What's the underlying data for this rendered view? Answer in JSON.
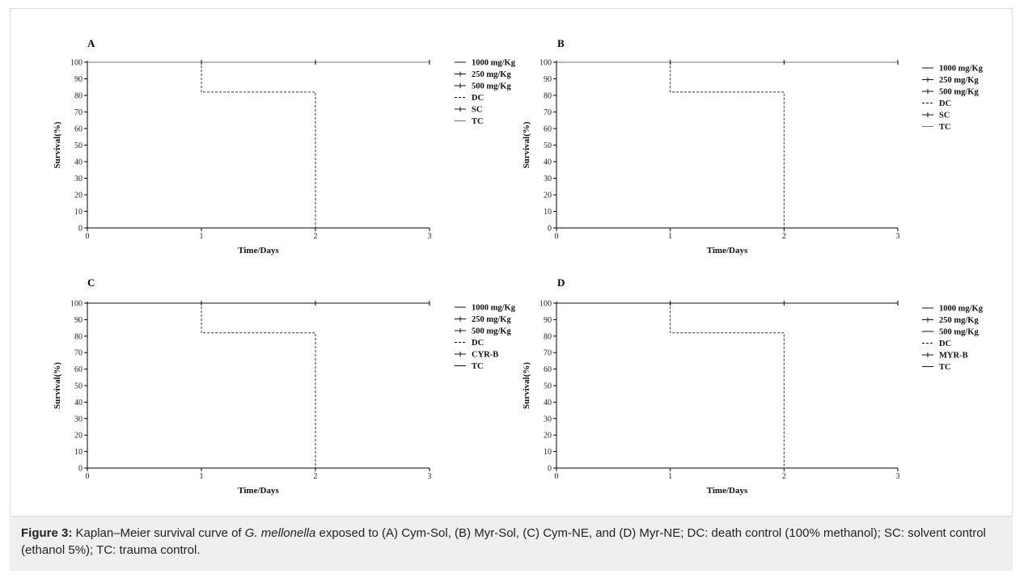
{
  "caption": {
    "lead": "Figure 3:",
    "text_before_species": " Kaplan–Meier survival curve of ",
    "species": "G. mellonella",
    "text_after_species": " exposed to (A) Cym-Sol, (B) Myr-Sol, (C) Cym-NE, and (D) Myr-NE; DC: death control (100% methanol); SC: solvent control (ethanol 5%); TC: trauma control."
  },
  "chart_data": [
    {
      "type": "line",
      "panel": "A",
      "xlabel": "Time/Days",
      "ylabel": "Survival(%)",
      "xlim": [
        0,
        3
      ],
      "ylim": [
        0,
        100
      ],
      "x_ticks": [
        0,
        1,
        2,
        3
      ],
      "y_ticks": [
        0,
        10,
        20,
        30,
        40,
        50,
        60,
        70,
        80,
        90,
        100
      ],
      "legend_position": "right",
      "series": [
        {
          "name": "1000 mg/Kg",
          "style": "solid",
          "x": [
            0,
            3
          ],
          "y": [
            100,
            100
          ]
        },
        {
          "name": "250 mg/Kg",
          "style": "solid-tick",
          "x": [
            0,
            3
          ],
          "y": [
            100,
            100
          ]
        },
        {
          "name": "500 mg/Kg",
          "style": "solid-tick",
          "x": [
            0,
            3
          ],
          "y": [
            100,
            100
          ]
        },
        {
          "name": "DC",
          "style": "dashed",
          "x": [
            0,
            1,
            1,
            2,
            2
          ],
          "y": [
            100,
            100,
            82,
            82,
            0
          ]
        },
        {
          "name": "SC",
          "style": "solid-tick",
          "x": [
            0,
            3
          ],
          "y": [
            100,
            100
          ]
        },
        {
          "name": "TC",
          "style": "solid-gray",
          "x": [
            0,
            3
          ],
          "y": [
            100,
            100
          ]
        }
      ]
    },
    {
      "type": "line",
      "panel": "B",
      "xlabel": "Time/Days",
      "ylabel": "Survival(%)",
      "xlim": [
        0,
        3
      ],
      "ylim": [
        0,
        100
      ],
      "x_ticks": [
        0,
        1,
        2,
        3
      ],
      "y_ticks": [
        0,
        10,
        20,
        30,
        40,
        50,
        60,
        70,
        80,
        90,
        100
      ],
      "legend_position": "right",
      "series": [
        {
          "name": "1000 mg/Kg",
          "style": "solid",
          "x": [
            0,
            3
          ],
          "y": [
            100,
            100
          ]
        },
        {
          "name": "250 mg/Kg",
          "style": "solid-tick",
          "x": [
            0,
            3
          ],
          "y": [
            100,
            100
          ]
        },
        {
          "name": "500 mg/Kg",
          "style": "solid-tick",
          "x": [
            0,
            3
          ],
          "y": [
            100,
            100
          ]
        },
        {
          "name": "DC",
          "style": "dashed",
          "x": [
            0,
            1,
            1,
            2,
            2
          ],
          "y": [
            100,
            100,
            82,
            82,
            0
          ]
        },
        {
          "name": "SC",
          "style": "solid-tick",
          "x": [
            0,
            3
          ],
          "y": [
            100,
            100
          ]
        },
        {
          "name": "TC",
          "style": "solid-gray",
          "x": [
            0,
            3
          ],
          "y": [
            100,
            100
          ]
        }
      ]
    },
    {
      "type": "line",
      "panel": "C",
      "xlabel": "Time/Days",
      "ylabel": "Survival(%)",
      "xlim": [
        0,
        3
      ],
      "ylim": [
        0,
        100
      ],
      "x_ticks": [
        0,
        1,
        2,
        3
      ],
      "y_ticks": [
        0,
        10,
        20,
        30,
        40,
        50,
        60,
        70,
        80,
        90,
        100
      ],
      "legend_position": "right",
      "series": [
        {
          "name": "1000 mg/Kg",
          "style": "solid",
          "x": [
            0,
            3
          ],
          "y": [
            100,
            100
          ]
        },
        {
          "name": "250 mg/Kg",
          "style": "solid-tick",
          "x": [
            0,
            3
          ],
          "y": [
            100,
            100
          ]
        },
        {
          "name": "500 mg/Kg",
          "style": "solid-tick",
          "x": [
            0,
            3
          ],
          "y": [
            100,
            100
          ]
        },
        {
          "name": "DC",
          "style": "dashed",
          "x": [
            0,
            1,
            1,
            2,
            2
          ],
          "y": [
            100,
            100,
            82,
            82,
            0
          ]
        },
        {
          "name": "CYR-B",
          "style": "solid-tick",
          "x": [
            0,
            3
          ],
          "y": [
            100,
            100
          ]
        },
        {
          "name": "TC",
          "style": "solid",
          "x": [
            0,
            3
          ],
          "y": [
            100,
            100
          ]
        }
      ]
    },
    {
      "type": "line",
      "panel": "D",
      "xlabel": "Time/Days",
      "ylabel": "Survival(%)",
      "xlim": [
        0,
        3
      ],
      "ylim": [
        0,
        100
      ],
      "x_ticks": [
        0,
        1,
        2,
        3
      ],
      "y_ticks": [
        0,
        10,
        20,
        30,
        40,
        50,
        60,
        70,
        80,
        90,
        100
      ],
      "legend_position": "right",
      "series": [
        {
          "name": "1000 mg/Kg",
          "style": "solid",
          "x": [
            0,
            3
          ],
          "y": [
            100,
            100
          ]
        },
        {
          "name": "250 mg/Kg",
          "style": "solid-tick",
          "x": [
            0,
            3
          ],
          "y": [
            100,
            100
          ]
        },
        {
          "name": "500 mg/Kg",
          "style": "solid",
          "x": [
            0,
            3
          ],
          "y": [
            100,
            100
          ]
        },
        {
          "name": "DC",
          "style": "dashed",
          "x": [
            0,
            1,
            1,
            2,
            2
          ],
          "y": [
            100,
            100,
            82,
            82,
            0
          ]
        },
        {
          "name": "MYR-B",
          "style": "solid-tick",
          "x": [
            0,
            3
          ],
          "y": [
            100,
            100
          ]
        },
        {
          "name": "TC",
          "style": "solid",
          "x": [
            0,
            3
          ],
          "y": [
            100,
            100
          ]
        }
      ]
    }
  ]
}
